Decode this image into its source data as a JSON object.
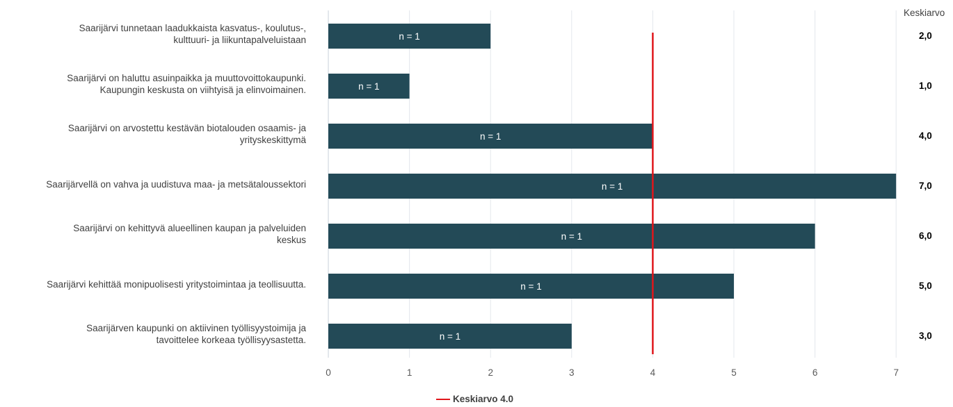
{
  "chart_data": {
    "type": "bar",
    "orientation": "horizontal",
    "categories": [
      [
        "Saarijärvi tunnetaan laadukkaista kasvatus-, koulutus-,",
        "kulttuuri- ja liikuntapalveluistaan"
      ],
      [
        "Saarijärvi on haluttu asuinpaikka ja muuttovoittokaupunki.",
        "Kaupungin keskusta on viihtyisä ja elinvoimainen."
      ],
      [
        "Saarijärvi on arvostettu kestävän biotalouden osaamis- ja",
        "yrityskeskittymä"
      ],
      [
        "Saarijärvellä on vahva ja uudistuva maa- ja metsätaloussektori"
      ],
      [
        "Saarijärvi on kehittyvä alueellinen kaupan ja palveluiden",
        "keskus"
      ],
      [
        "Saarijärvi kehittää monipuolisesti yritystoimintaa ja teollisuutta."
      ],
      [
        "Saarijärven kaupunki on aktiivinen työllisyystoimija ja",
        "tavoittelee korkeaa työllisyysastetta."
      ]
    ],
    "values": [
      2,
      1,
      4,
      7,
      6,
      5,
      3
    ],
    "bar_labels": [
      "n = 1",
      "n = 1",
      "n = 1",
      "n = 1",
      "n = 1",
      "n = 1",
      "n = 1"
    ],
    "mean_header": "Keskiarvo",
    "mean_values": [
      "2,0",
      "1,0",
      "4,0",
      "7,0",
      "6,0",
      "5,0",
      "3,0"
    ],
    "reference_line": {
      "value": 4.0,
      "legend_label": "Keskiarvo 4.0",
      "color": "#e0161b"
    },
    "xlim": [
      0,
      7
    ],
    "xticks": [
      "0",
      "1",
      "2",
      "3",
      "4",
      "5",
      "6",
      "7"
    ],
    "grid": "vertical",
    "legend_position": "bottom-center",
    "bar_color": "#234a57"
  }
}
